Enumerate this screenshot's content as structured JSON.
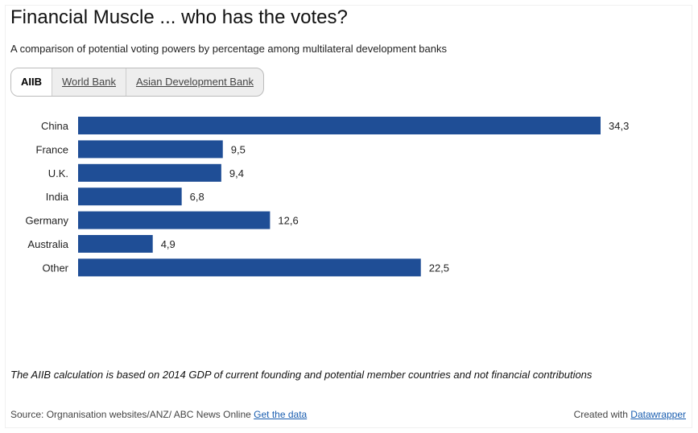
{
  "title": "Financial Muscle ... who has the votes?",
  "subtitle": "A comparison of potential voting powers by percentage among multilateral development banks",
  "tabs": [
    {
      "label": "AIIB",
      "active": true
    },
    {
      "label": "World Bank",
      "active": false
    },
    {
      "label": "Asian Development Bank",
      "active": false
    }
  ],
  "chart_data": {
    "type": "bar",
    "orientation": "horizontal",
    "categories": [
      "China",
      "France",
      "U.K.",
      "India",
      "Germany",
      "Australia",
      "Other"
    ],
    "values": [
      34.3,
      9.5,
      9.4,
      6.8,
      12.6,
      4.9,
      22.5
    ],
    "value_labels": [
      "34,3",
      "9,5",
      "9,4",
      "6,8",
      "12,6",
      "4,9",
      "22,5"
    ],
    "color": "#1f4e96",
    "xlim": [
      0,
      34.3
    ],
    "grid": false
  },
  "note": "The AIIB calculation is based on 2014 GDP of current founding and potential member countries and not financial contributions",
  "footer": {
    "source": "Source: Orgnanisation websites/ANZ/ ABC News Online",
    "get_data": "Get the data",
    "created_with": "Created with",
    "datawrapper": "Datawrapper"
  }
}
